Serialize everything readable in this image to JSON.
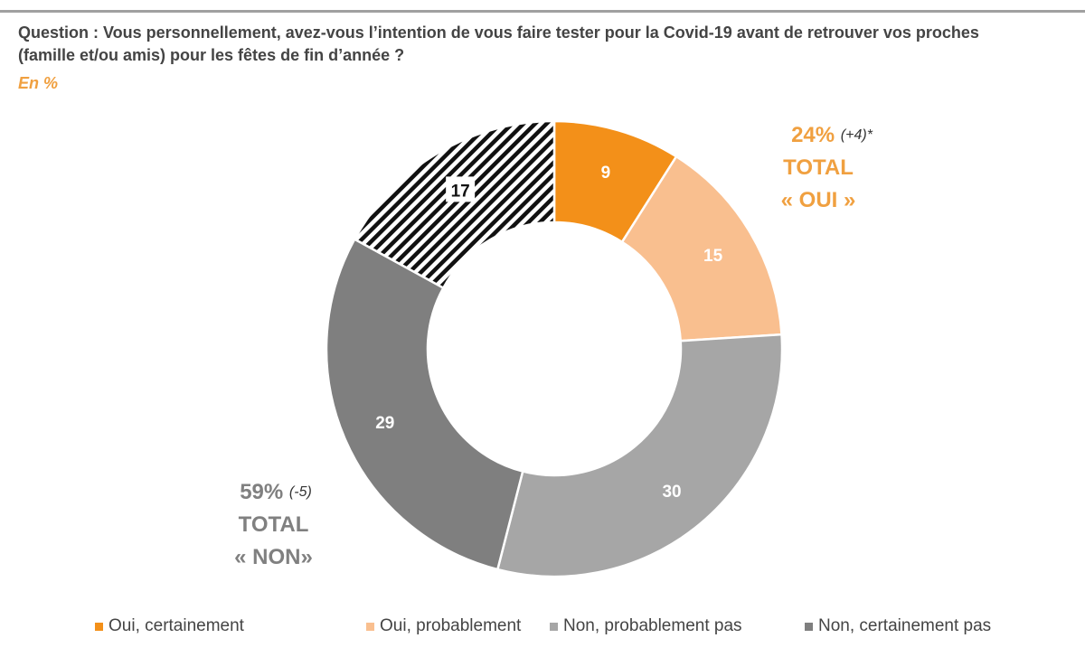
{
  "title": "Question : Vous personnellement, avez-vous l’intention de vous faire tester pour la Covid-19 avant de retrouver vos proches (famille et/ou amis) pour les fêtes de fin d’année ?",
  "subtitle": "En %",
  "chart_data": {
    "type": "pie",
    "variant": "donut",
    "categories": [
      "Oui, certainement",
      "Oui, probablement",
      "Non, probablement pas",
      "Non, certainement pas",
      ""
    ],
    "values": [
      9,
      15,
      30,
      29,
      17
    ],
    "data_labels": [
      "9",
      "15",
      "30",
      "29",
      "17"
    ],
    "colors": [
      "#F39019",
      "#F9BF8F",
      "#A6A6A6",
      "#7F7F7F",
      "hatched-black"
    ],
    "start": "top",
    "direction": "clockwise",
    "legend_position": "bottom",
    "annotations": {
      "oui": {
        "value": "24%",
        "change": "(+4)*",
        "line1": "TOTAL",
        "line2": "« OUI »",
        "color": "#F0A040"
      },
      "non": {
        "value": "59%",
        "change": "(-5)",
        "line1": "TOTAL",
        "line2": "« NON»",
        "color": "#808080"
      }
    }
  },
  "legend": [
    {
      "label": "Oui, certainement",
      "color": "#F39019"
    },
    {
      "label": "Oui, probablement",
      "color": "#F9BF8F"
    },
    {
      "label": "Non, probablement pas",
      "color": "#A6A6A6"
    },
    {
      "label": "Non, certainement pas",
      "color": "#7F7F7F"
    }
  ]
}
